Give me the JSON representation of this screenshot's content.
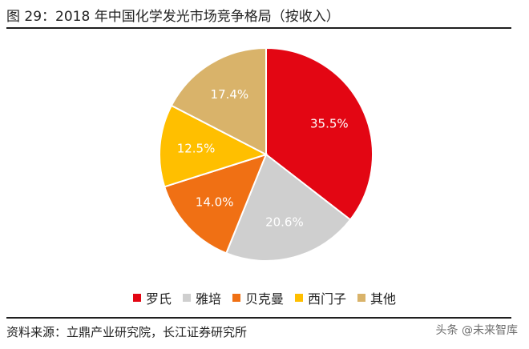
{
  "header": {
    "title": "图 29：2018 年中国化学发光市场竞争格局（按收入）"
  },
  "footer": {
    "source": "资料来源：立鼎产业研究院，长江证券研究所",
    "watermark": "头条 @未来智库"
  },
  "chart_data": {
    "type": "pie",
    "title": "2018 年中国化学发光市场竞争格局（按收入）",
    "legend_position": "bottom",
    "slices": [
      {
        "name": "罗氏",
        "value": 35.5,
        "label": "35.5%",
        "color": "#e30613"
      },
      {
        "name": "雅培",
        "value": 20.6,
        "label": "20.6%",
        "color": "#cfcfcf"
      },
      {
        "name": "贝克曼",
        "value": 14.0,
        "label": "14.0%",
        "color": "#f07014"
      },
      {
        "name": "西门子",
        "value": 12.5,
        "label": "12.5%",
        "color": "#ffbf00"
      },
      {
        "name": "其他",
        "value": 17.4,
        "label": "17.4%",
        "color": "#d9b36a"
      }
    ]
  }
}
